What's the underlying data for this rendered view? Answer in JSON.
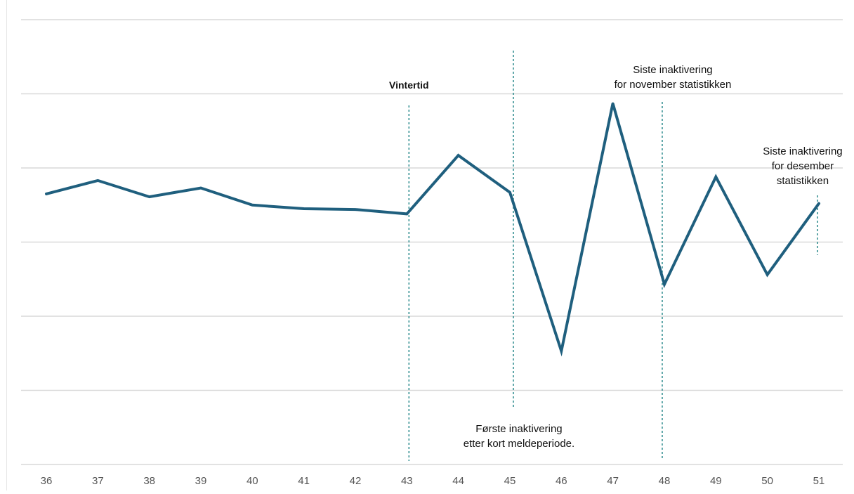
{
  "chart_data": {
    "type": "line",
    "title": "",
    "xlabel": "",
    "ylabel": "",
    "x": [
      "36",
      "37",
      "38",
      "39",
      "40",
      "41",
      "42",
      "43",
      "44",
      "45",
      "46",
      "47",
      "48",
      "49",
      "50",
      "51"
    ],
    "series": [
      {
        "values": [
          3.65,
          3.83,
          3.61,
          3.73,
          3.5,
          3.45,
          3.44,
          3.38,
          4.17,
          3.67,
          1.53,
          4.87,
          2.43,
          3.88,
          2.56,
          3.52
        ]
      }
    ],
    "ylim": [
      0,
      6
    ],
    "grid": true,
    "y_ticks_shown": false,
    "annotations": [
      {
        "id": "vintertid",
        "at_x": "43",
        "lines": [
          "Vintertid"
        ],
        "bold": true
      },
      {
        "id": "forste",
        "at_x": "45",
        "lines": [
          "Første inaktivering",
          "etter kort meldeperiode."
        ],
        "bold": false
      },
      {
        "id": "nov",
        "at_x": "48",
        "lines": [
          "Siste inaktivering",
          "for november statistikken"
        ],
        "bold": false
      },
      {
        "id": "des",
        "at_x": "51",
        "lines": [
          "Siste inaktivering",
          "for desember",
          "statistikken"
        ],
        "bold": false
      }
    ],
    "colors": {
      "line": "#1f5f7e",
      "marker": "#2a8a8c",
      "grid": "#d9d9d9",
      "text": "#111111",
      "tick": "#555555"
    }
  }
}
